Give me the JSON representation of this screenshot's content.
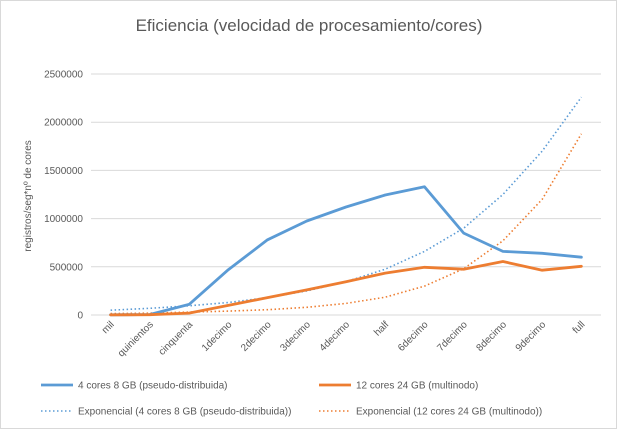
{
  "chart_data": {
    "type": "line",
    "title": "Eficiencia (velocidad de procesamiento/cores)",
    "xlabel": "",
    "ylabel": "registros/seg*nº de cores",
    "categories": [
      "mil",
      "quinientos",
      "cinquenta",
      "1decimo",
      "2decimo",
      "3decimo",
      "4decimo",
      "half",
      "6decimo",
      "7decimo",
      "8decimo",
      "9decimo",
      "full"
    ],
    "yticks": [
      "0",
      "500000",
      "1000000",
      "1500000",
      "2000000",
      "2500000"
    ],
    "ylim": [
      0,
      2500000
    ],
    "grid": true,
    "legend_position": "bottom",
    "series": [
      {
        "name": "4 cores 8 GB (pseudo-distribuida)",
        "color": "#5B9BD5",
        "style": "solid",
        "values": [
          2000,
          5000,
          110000,
          470000,
          780000,
          975000,
          1120000,
          1245000,
          1330000,
          850000,
          660000,
          640000,
          600000
        ]
      },
      {
        "name": "12 cores 24 GB (multinodo)",
        "color": "#ED7D31",
        "style": "solid",
        "values": [
          1000,
          3000,
          20000,
          100000,
          180000,
          260000,
          345000,
          435000,
          495000,
          475000,
          555000,
          465000,
          505000
        ]
      },
      {
        "name": "Exponencial (4 cores 8 GB (pseudo-distribuida))",
        "color": "#5B9BD5",
        "style": "dotted",
        "values": [
          50000,
          70000,
          95000,
          130000,
          180000,
          250000,
          345000,
          475000,
          660000,
          900000,
          1250000,
          1700000,
          2260000
        ]
      },
      {
        "name": "Exponencial (12 cores 24 GB (multinodo))",
        "color": "#ED7D31",
        "style": "dotted",
        "values": [
          15000,
          20000,
          30000,
          40000,
          55000,
          80000,
          120000,
          185000,
          300000,
          480000,
          770000,
          1200000,
          1880000
        ]
      }
    ]
  }
}
